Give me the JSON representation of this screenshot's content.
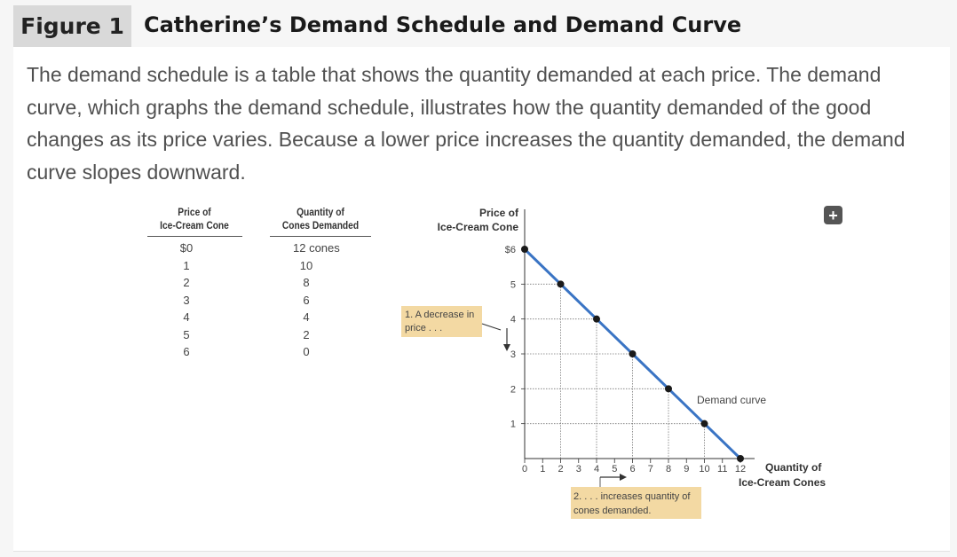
{
  "figure": {
    "label": "Figure 1",
    "title": "Catherine’s Demand Schedule and Demand Curve",
    "caption": "The demand schedule is a table that shows the quantity demanded at each price. The demand curve, which graphs the demand schedule, illustrates how the quantity demanded of the good changes as its price varies. Because a lower price increases the quantity demanded, the demand curve slopes downward."
  },
  "table": {
    "headers": [
      "Price of Ice-Cream Cone",
      "Quantity of Cones Demanded"
    ],
    "header_lines": [
      [
        "Price of",
        "Ice-Cream Cone"
      ],
      [
        "Quantity of",
        "Cones Demanded"
      ]
    ],
    "rows": [
      [
        "$0",
        "12 cones"
      ],
      [
        "1",
        "10"
      ],
      [
        "2",
        "8"
      ],
      [
        "3",
        "6"
      ],
      [
        "4",
        "4"
      ],
      [
        "5",
        "2"
      ],
      [
        "6",
        "0"
      ]
    ]
  },
  "chart_data": {
    "type": "line",
    "title": "",
    "ylabel": "Price of Ice-Cream Cone",
    "ylabel_lines": [
      "Price of",
      "Ice-Cream Cone"
    ],
    "xlabel": "Quantity of Ice-Cream Cones",
    "xlabel_lines": [
      "Quantity of",
      "Ice-Cream Cones"
    ],
    "xlim": [
      0,
      12
    ],
    "ylim": [
      0,
      6
    ],
    "xticks": [
      "0",
      "1",
      "2",
      "3",
      "4",
      "5",
      "6",
      "7",
      "8",
      "9",
      "10",
      "11",
      "12"
    ],
    "yticks": [
      "1",
      "2",
      "3",
      "4",
      "5",
      "$6"
    ],
    "grid": "dotted lines from points to axes",
    "series": [
      {
        "name": "Demand curve",
        "color": "#3a74c4",
        "points": [
          [
            0,
            6
          ],
          [
            2,
            5
          ],
          [
            4,
            4
          ],
          [
            6,
            3
          ],
          [
            8,
            2
          ],
          [
            10,
            1
          ],
          [
            12,
            0
          ]
        ]
      }
    ],
    "annotations": [
      {
        "text": "1. A decrease in price . . .",
        "lines": [
          "1. A decrease in",
          "price . . ."
        ],
        "box_color": "#f3d9a3"
      },
      {
        "text": "2. . . . increases quantity of cones demanded.",
        "lines": [
          "2. . . . increases quantity of",
          "cones demanded."
        ],
        "box_color": "#f3d9a3"
      }
    ]
  },
  "icons": {
    "expand": "plus-icon",
    "expand_glyph": "+"
  }
}
